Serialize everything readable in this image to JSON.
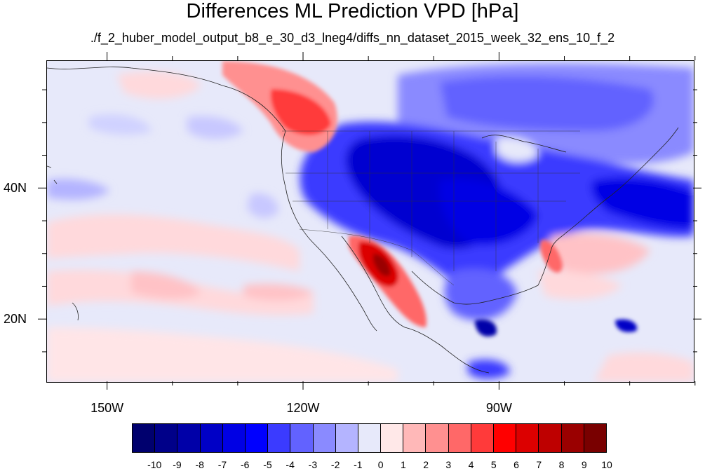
{
  "title": "Differences ML Prediction VPD [hPa]",
  "subtitle": "./f_2_huber_model_output_b8_e_30_d3_lneg4/diffs_nn_dataset_2015_week_32_ens_10_f_2",
  "map": {
    "projection": "cylindrical equidistant",
    "lon_range": [
      -159.3,
      -60.3
    ],
    "lat_range": [
      10.5,
      59.5
    ],
    "x_ticks": [
      {
        "lon": -150,
        "label": "150W"
      },
      {
        "lon": -120,
        "label": "120W"
      },
      {
        "lon": -90,
        "label": "90W"
      }
    ],
    "y_ticks": [
      {
        "lat": 20,
        "label": "20N"
      },
      {
        "lat": 40,
        "label": "40N"
      }
    ],
    "features": [
      "coastlines",
      "country borders",
      "US state borders"
    ]
  },
  "colorbar": {
    "labels": [
      "-10",
      "-9",
      "-8",
      "-7",
      "-6",
      "-5",
      "-4",
      "-3",
      "-2",
      "-1",
      "0",
      "1",
      "2",
      "3",
      "4",
      "5",
      "6",
      "7",
      "8",
      "9",
      "10"
    ],
    "colors": [
      "#00006e",
      "#000089",
      "#0000a8",
      "#0000c6",
      "#0000e4",
      "#0000ff",
      "#3b3bff",
      "#6262ff",
      "#8a8aff",
      "#b4b4ff",
      "#e7e9fa",
      "#ffe8e8",
      "#ffb8b8",
      "#ff9090",
      "#ff6868",
      "#ff3a3a",
      "#ff0000",
      "#dc0000",
      "#be0000",
      "#9a0000",
      "#790000"
    ]
  }
}
